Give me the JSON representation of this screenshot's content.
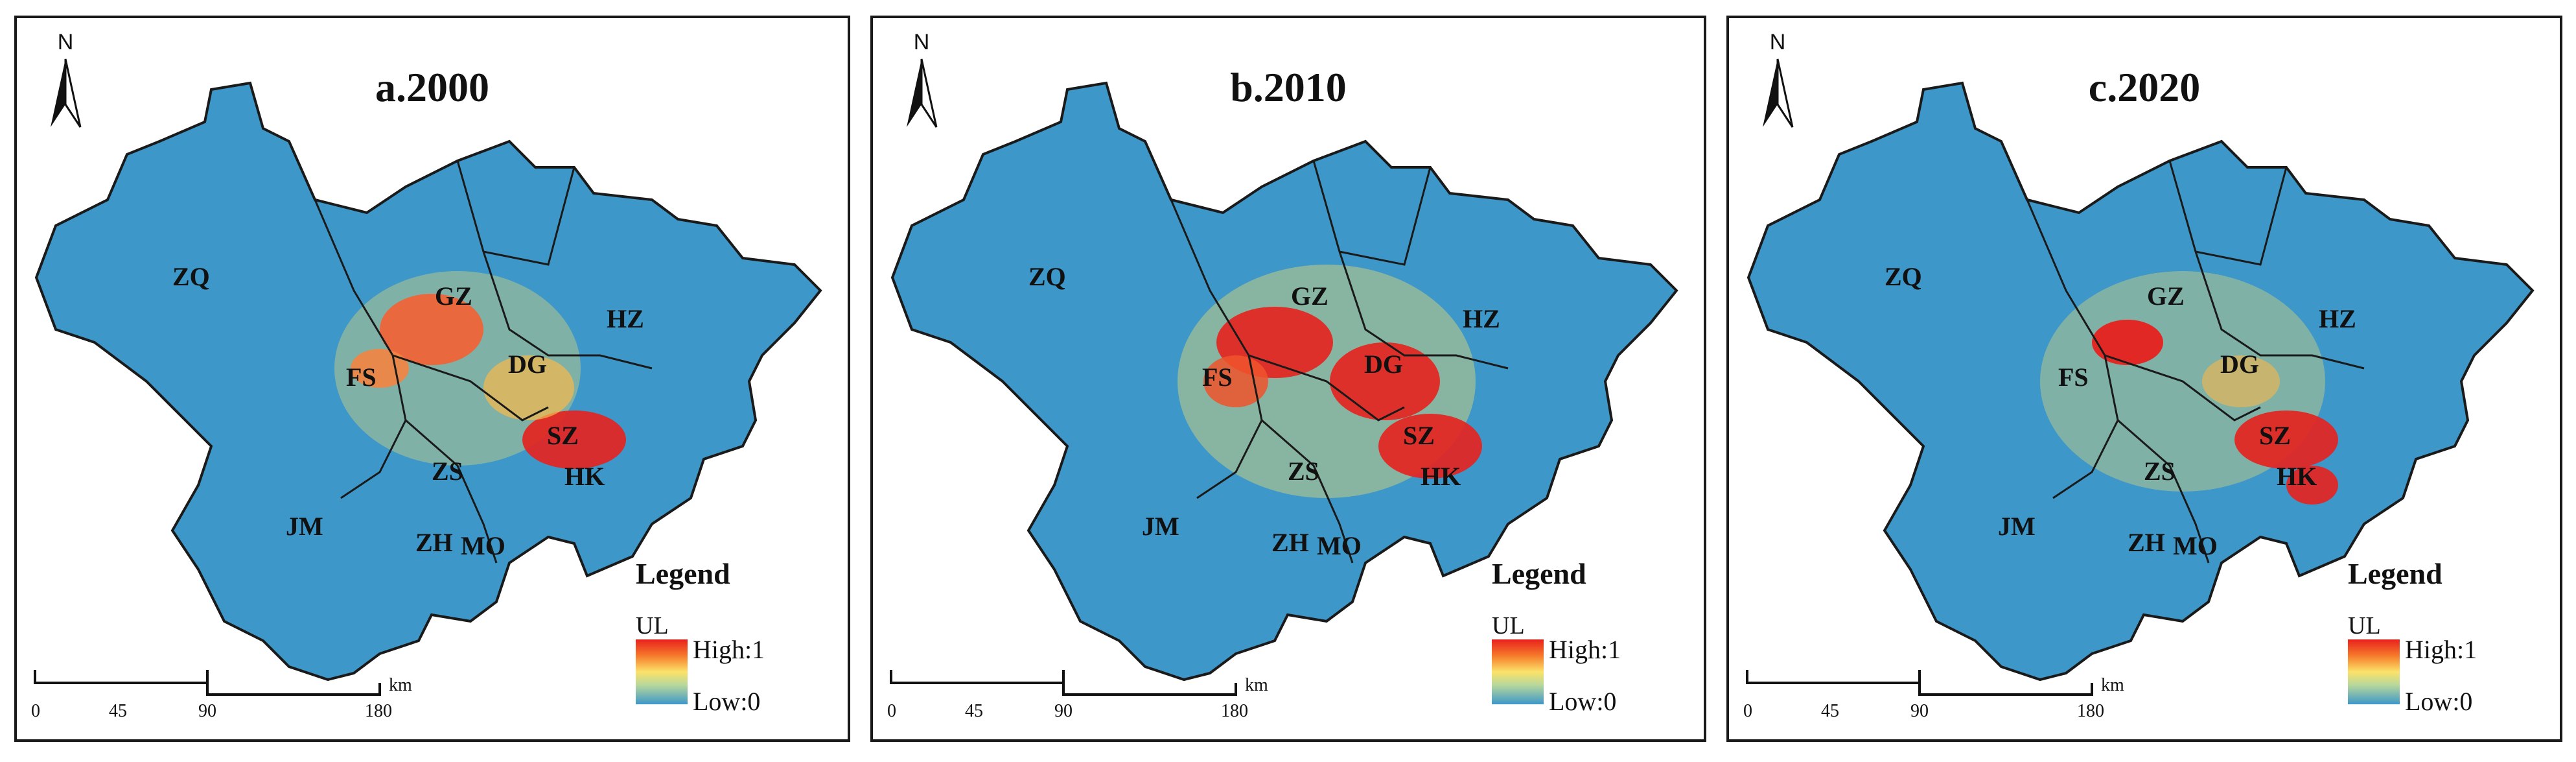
{
  "panels": [
    {
      "id": "a",
      "title": "a.2000"
    },
    {
      "id": "b",
      "title": "b.2010"
    },
    {
      "id": "c",
      "title": "c.2020"
    }
  ],
  "north_label": "N",
  "cities": [
    "ZQ",
    "GZ",
    "HZ",
    "FS",
    "DG",
    "SZ",
    "ZS",
    "HK",
    "JM",
    "ZH",
    "MO"
  ],
  "legend": {
    "title": "Legend",
    "variable": "UL",
    "high_label": "High:1",
    "low_label": "Low:0",
    "colors": {
      "high": "#e8211d",
      "mid": "#fbe26a",
      "low": "#3d97c8"
    }
  },
  "scale_bar": {
    "ticks": [
      "0",
      "45",
      "90",
      "180"
    ],
    "unit": "km"
  },
  "colors": {
    "base": "#3d97c8",
    "border": "#1a1a1a"
  }
}
